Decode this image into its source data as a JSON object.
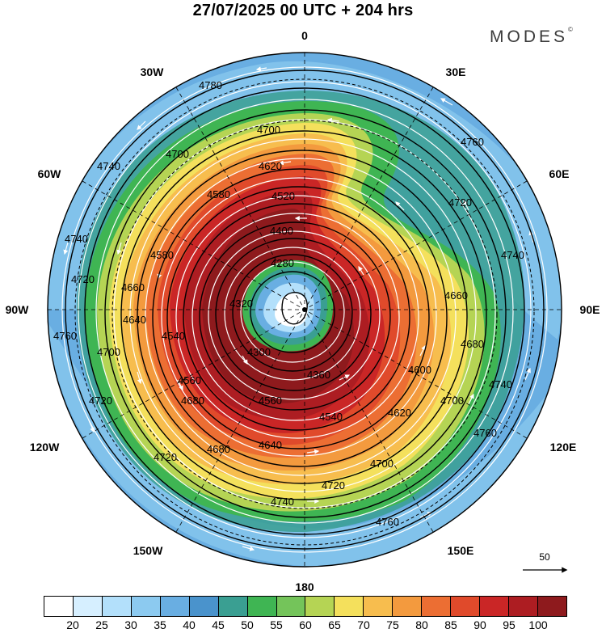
{
  "title": "27/07/2025  00 UTC  + 204 hrs",
  "brand": "MODES",
  "brand_mark": "©",
  "longitude_labels": [
    {
      "text": "0",
      "lon": 0
    },
    {
      "text": "30E",
      "lon": 30
    },
    {
      "text": "60E",
      "lon": 60
    },
    {
      "text": "90E",
      "lon": 90
    },
    {
      "text": "120E",
      "lon": 120
    },
    {
      "text": "150E",
      "lon": 150
    },
    {
      "text": "180",
      "lon": 180
    },
    {
      "text": "150W",
      "lon": -150
    },
    {
      "text": "120W",
      "lon": -120
    },
    {
      "text": "90W",
      "lon": -90
    },
    {
      "text": "60W",
      "lon": -60
    },
    {
      "text": "30W",
      "lon": -30
    }
  ],
  "contour_labels": [
    "4780",
    "4760",
    "4760",
    "4760",
    "4760",
    "4740",
    "4740",
    "4740",
    "4740",
    "4740",
    "4720",
    "4720",
    "4720",
    "4720",
    "4720",
    "4700",
    "4700",
    "4700",
    "4700",
    "4700",
    "4680",
    "4680",
    "4680",
    "4660",
    "4660",
    "4640",
    "4640",
    "4620",
    "4620",
    "4600",
    "4580",
    "4580",
    "4560",
    "4560",
    "4540",
    "4540",
    "4520",
    "4400",
    "4360",
    "4320",
    "4300",
    "4280"
  ],
  "wind_scale_label": "50",
  "colorbar": {
    "colors": [
      "#ffffff",
      "#d6efff",
      "#b3e0fb",
      "#8ccaf0",
      "#69aee2",
      "#4a93cc",
      "#3a9f92",
      "#3fb553",
      "#74c45a",
      "#b5d454",
      "#f4e05c",
      "#f7bd4e",
      "#f39a3e",
      "#ec6e33",
      "#e04a2b",
      "#ca2626",
      "#ad1d22",
      "#8e1a1d"
    ],
    "tick_labels": [
      "20",
      "25",
      "30",
      "35",
      "40",
      "45",
      "50",
      "55",
      "60",
      "65",
      "70",
      "75",
      "80",
      "85",
      "90",
      "95",
      "100"
    ]
  }
}
